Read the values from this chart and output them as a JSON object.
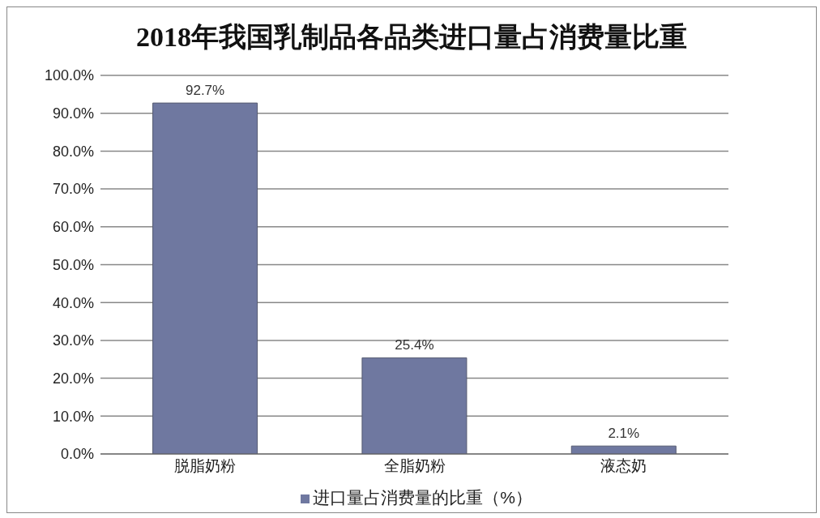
{
  "chart_data": {
    "type": "bar",
    "title": "2018年我国乳制品各品类进口量占消费量比重",
    "categories": [
      "脱脂奶粉",
      "全脂奶粉",
      "液态奶"
    ],
    "series": [
      {
        "name": "进口量占消费量的比重（%）",
        "color": "#6f78a0",
        "values": [
          92.7,
          25.4,
          2.1
        ],
        "value_labels": [
          "92.7%",
          "25.4%",
          "2.1%"
        ]
      }
    ],
    "ylim": [
      0,
      100
    ],
    "yticks": [
      {
        "value": 0,
        "label": "0.0%"
      },
      {
        "value": 10,
        "label": "10.0%"
      },
      {
        "value": 20,
        "label": "20.0%"
      },
      {
        "value": 30,
        "label": "30.0%"
      },
      {
        "value": 40,
        "label": "40.0%"
      },
      {
        "value": 50,
        "label": "50.0%"
      },
      {
        "value": 60,
        "label": "60.0%"
      },
      {
        "value": 70,
        "label": "70.0%"
      },
      {
        "value": 80,
        "label": "80.0%"
      },
      {
        "value": 90,
        "label": "90.0%"
      },
      {
        "value": 100,
        "label": "100.0%"
      }
    ],
    "grid": "y",
    "legend": "bottom"
  }
}
